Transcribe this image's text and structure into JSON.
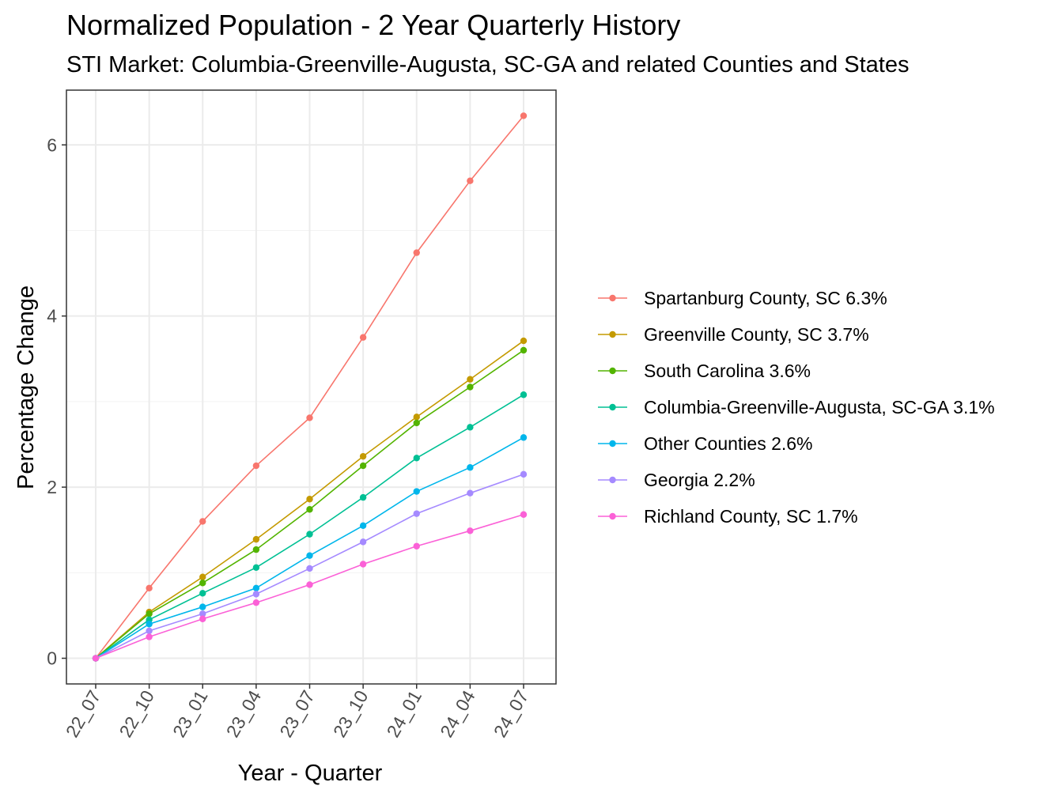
{
  "chart_data": {
    "type": "line",
    "title": "Normalized Population - 2 Year Quarterly History",
    "subtitle": "STI Market: Columbia-Greenville-Augusta, SC-GA and related Counties and States",
    "xlabel": "Year - Quarter",
    "ylabel": "Percentage Change",
    "categories": [
      "22_07",
      "22_10",
      "23_01",
      "23_04",
      "23_07",
      "23_10",
      "24_01",
      "24_04",
      "24_07"
    ],
    "ylim": [
      -0.3,
      6.64
    ],
    "yticks": [
      0,
      2,
      4,
      6
    ],
    "grid": true,
    "legend_position": "right",
    "series": [
      {
        "name": "Spartanburg County, SC 6.3%",
        "color": "#F8766D",
        "values": [
          0,
          0.82,
          1.6,
          2.25,
          2.81,
          3.75,
          4.74,
          5.58,
          6.34
        ]
      },
      {
        "name": "Greenville County, SC 3.7%",
        "color": "#C49A00",
        "values": [
          0,
          0.54,
          0.95,
          1.39,
          1.86,
          2.36,
          2.82,
          3.26,
          3.71
        ]
      },
      {
        "name": "South Carolina 3.6%",
        "color": "#53B400",
        "values": [
          0,
          0.52,
          0.88,
          1.27,
          1.74,
          2.25,
          2.75,
          3.17,
          3.6
        ]
      },
      {
        "name": "Columbia-Greenville-Augusta, SC-GA 3.1%",
        "color": "#00C094",
        "values": [
          0,
          0.45,
          0.76,
          1.06,
          1.45,
          1.88,
          2.34,
          2.7,
          3.08
        ]
      },
      {
        "name": "Other Counties 2.6%",
        "color": "#00B6EB",
        "values": [
          0,
          0.4,
          0.6,
          0.82,
          1.2,
          1.55,
          1.95,
          2.23,
          2.58
        ]
      },
      {
        "name": "Georgia 2.2%",
        "color": "#A58AFF",
        "values": [
          0,
          0.32,
          0.52,
          0.75,
          1.05,
          1.36,
          1.69,
          1.93,
          2.15
        ]
      },
      {
        "name": "Richland County, SC 1.7%",
        "color": "#FB61D7",
        "values": [
          0,
          0.25,
          0.46,
          0.65,
          0.86,
          1.1,
          1.31,
          1.49,
          1.68
        ]
      }
    ]
  }
}
